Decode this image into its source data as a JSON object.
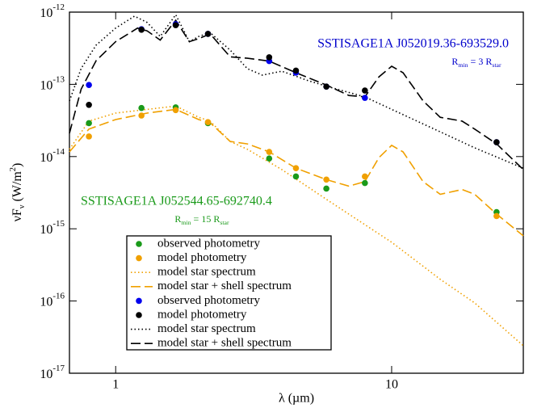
{
  "chart_data": {
    "type": "line",
    "xscale": "log",
    "yscale": "log",
    "xlim": [
      0.68,
      30
    ],
    "ylim": [
      1e-17,
      1e-12
    ],
    "xticks": [
      1,
      10
    ],
    "yticks": [
      {
        "value": 1e-17,
        "label": "10",
        "sup": "-17"
      },
      {
        "value": 1e-16,
        "label": "10",
        "sup": "-16"
      },
      {
        "value": 1e-15,
        "label": "10",
        "sup": "-15"
      },
      {
        "value": 1e-14,
        "label": "10",
        "sup": "-14"
      },
      {
        "value": 1e-13,
        "label": "10",
        "sup": "-13"
      },
      {
        "value": 1e-12,
        "label": "10",
        "sup": "-12"
      }
    ],
    "xlabel": "λ (µm)",
    "ylabel": [
      {
        "text": "νF"
      },
      {
        "text": "ν",
        "script": "sub"
      },
      {
        "text": " (W/m"
      },
      {
        "text": "2",
        "script": "sup"
      },
      {
        "text": ")"
      }
    ],
    "annotations": [
      {
        "text": "SSTISAGE1A J052019.36-693529.0",
        "color": "#0000cc",
        "parts": [
          {
            "text": "R"
          },
          {
            "text": "min",
            "script": "sub"
          },
          {
            "text": " = 3 R"
          },
          {
            "text": "star",
            "script": "sub"
          }
        ]
      },
      {
        "text": "SSTISAGE1A J052544.65-692740.4",
        "color": "#1a9a1a",
        "parts": [
          {
            "text": "R"
          },
          {
            "text": "min",
            "script": "sub"
          },
          {
            "text": " = 15 R"
          },
          {
            "text": "star",
            "script": "sub"
          }
        ]
      }
    ],
    "legend": "lower-left",
    "series": [
      {
        "name": "observed photometry",
        "color": "#1a9a1a",
        "mode": "points",
        "x": [
          0.8,
          1.24,
          1.65,
          2.16,
          3.6,
          4.5,
          5.8,
          8.0,
          24
        ],
        "values": [
          2.9e-14,
          4.7e-14,
          4.8e-14,
          2.9e-14,
          9.4e-15,
          5.3e-15,
          3.6e-15,
          4.3e-15,
          1.7e-15
        ]
      },
      {
        "name": "model photometry",
        "color": "#f0a000",
        "mode": "points",
        "x": [
          0.8,
          1.24,
          1.65,
          2.16,
          3.6,
          4.5,
          5.8,
          8.0,
          24
        ],
        "values": [
          1.9e-14,
          3.7e-14,
          4.4e-14,
          3e-14,
          1.16e-14,
          6.9e-15,
          4.8e-15,
          5.3e-15,
          1.5e-15
        ]
      },
      {
        "name": "model star spectrum",
        "color": "#f0a000",
        "mode": "line",
        "dash": "dotted",
        "x": [
          0.68,
          0.8,
          1.0,
          1.3,
          1.65,
          2.0,
          2.2,
          2.6,
          3.0,
          4.0,
          6.0,
          10,
          15,
          20,
          30
        ],
        "values": [
          1.26e-14,
          3.1e-14,
          4e-14,
          4.5e-14,
          5e-14,
          3.5e-14,
          3.1e-14,
          1.62e-14,
          1.26e-14,
          6.6e-15,
          2.35e-15,
          6.5e-16,
          2e-16,
          9.4e-17,
          2.4e-17
        ]
      },
      {
        "name": "model star + shell spectrum",
        "color": "#f0a000",
        "mode": "line",
        "dash": "dashed",
        "x": [
          0.68,
          0.8,
          1.0,
          1.3,
          1.65,
          2.0,
          2.2,
          2.6,
          3.0,
          3.6,
          4.5,
          5.8,
          7.0,
          8.0,
          9.0,
          10,
          11,
          13,
          15,
          18,
          20,
          24,
          30
        ],
        "values": [
          1.16e-14,
          2.4e-14,
          3.25e-14,
          4e-14,
          4.5e-14,
          3.25e-14,
          2.94e-14,
          1.62e-14,
          1.5e-14,
          1.16e-14,
          6.9e-15,
          4.8e-15,
          3.9e-15,
          4.5e-15,
          9.7e-15,
          1.43e-14,
          1.16e-14,
          4.5e-15,
          3e-15,
          3.5e-15,
          3e-15,
          1.6e-15,
          8e-16
        ]
      },
      {
        "name": "observed photometry",
        "color": "#0000ee",
        "mode": "points",
        "x": [
          0.8,
          1.24,
          1.65,
          2.16,
          3.6,
          4.5,
          5.8,
          8.0,
          24
        ],
        "values": [
          9.8e-14,
          5.8e-13,
          6.8e-13,
          5e-13,
          2.1e-13,
          1.45e-13,
          9.3e-14,
          6.5e-14,
          1.58e-14
        ]
      },
      {
        "name": "model photometry",
        "color": "#000000",
        "mode": "points",
        "x": [
          0.8,
          1.24,
          1.65,
          2.16,
          3.6,
          4.5,
          5.8,
          8.0,
          24
        ],
        "values": [
          5.2e-14,
          5.7e-13,
          6.6e-13,
          5e-13,
          2.37e-13,
          1.55e-13,
          9.3e-14,
          8.2e-14,
          1.58e-14
        ]
      },
      {
        "name": "model star spectrum",
        "color": "#000000",
        "mode": "line",
        "dash": "dotted",
        "x": [
          0.68,
          0.75,
          0.85,
          1.0,
          1.17,
          1.3,
          1.45,
          1.65,
          1.85,
          2.0,
          2.2,
          2.6,
          3.0,
          3.4,
          4.0,
          5.0,
          6.0,
          8.0,
          10,
          15,
          20,
          30
        ],
        "values": [
          5.9e-14,
          1.66e-13,
          3.5e-13,
          6e-13,
          8.8e-13,
          7.2e-13,
          4.6e-13,
          9.2e-13,
          3.9e-13,
          4.6e-13,
          5.2e-13,
          2.98e-13,
          1.65e-13,
          1.34e-13,
          1.52e-13,
          1.12e-13,
          9.1e-14,
          6.7e-14,
          4.5e-14,
          2.2e-14,
          1.32e-14,
          6.9e-15
        ]
      },
      {
        "name": "model star + shell spectrum",
        "color": "#000000",
        "mode": "line",
        "dash": "dashed",
        "x": [
          0.68,
          0.75,
          0.85,
          1.0,
          1.2,
          1.3,
          1.45,
          1.65,
          1.85,
          2.0,
          2.2,
          2.6,
          3.0,
          3.6,
          4.5,
          5.8,
          7.0,
          8.0,
          9.0,
          10,
          11,
          13,
          15,
          18,
          20,
          24,
          30
        ],
        "values": [
          2.1e-14,
          8.6e-14,
          2.13e-13,
          3.9e-13,
          6e-13,
          5.5e-13,
          4.1e-13,
          7.7e-13,
          3.9e-13,
          4.3e-13,
          5e-13,
          2.4e-13,
          2.3e-13,
          2.1e-13,
          1.45e-13,
          9.8e-14,
          7e-14,
          6.7e-14,
          1.27e-13,
          1.78e-13,
          1.45e-13,
          5.9e-14,
          3.5e-14,
          3.1e-14,
          2.4e-14,
          1.5e-14,
          6.6e-15
        ]
      }
    ]
  }
}
